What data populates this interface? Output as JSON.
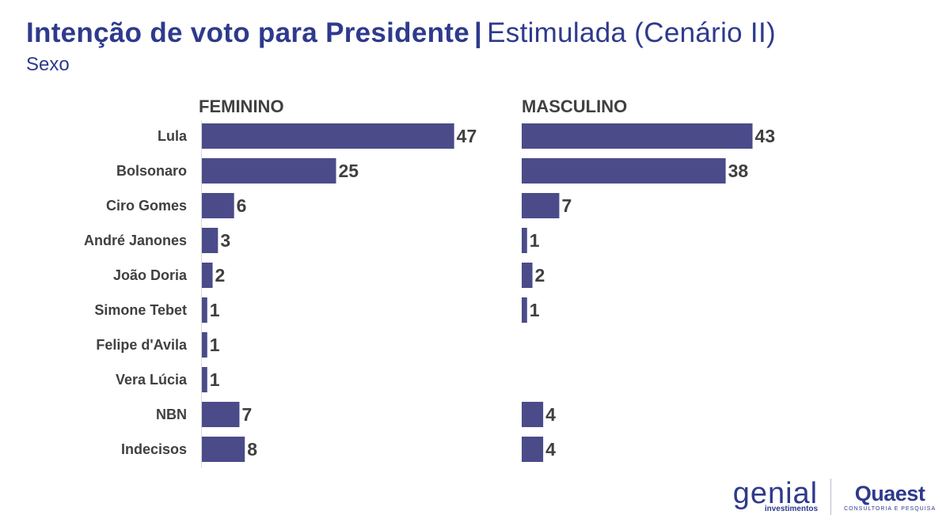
{
  "header": {
    "title_bold": "Intenção de voto para Presidente",
    "title_separator": "|",
    "title_rest": "Estimulada (Cenário II)",
    "subtitle": "Sexo"
  },
  "chart_data": {
    "type": "bar",
    "orientation": "horizontal",
    "categories": [
      "Lula",
      "Bolsonaro",
      "Ciro Gomes",
      "André Janones",
      "João Doria",
      "Simone Tebet",
      "Felipe d'Avila",
      "Vera Lúcia",
      "NBN",
      "Indecisos"
    ],
    "series": [
      {
        "name": "FEMININO",
        "values": [
          47,
          25,
          6,
          3,
          2,
          1,
          1,
          1,
          7,
          8
        ]
      },
      {
        "name": "MASCULINO",
        "values": [
          43,
          38,
          7,
          1,
          2,
          1,
          null,
          null,
          4,
          4
        ]
      }
    ],
    "bar_color": "#4b4b8a",
    "xlim": [
      0,
      50
    ],
    "grid": false,
    "legend": "none"
  },
  "logos": {
    "genial_word": "genial",
    "genial_sub": "investimentos",
    "quaest_word": "Quaest",
    "quaest_sub": "CONSULTORIA E PESQUISA"
  },
  "colors": {
    "title": "#2e3a8c",
    "text": "#404040",
    "bar": "#4b4b8a"
  }
}
